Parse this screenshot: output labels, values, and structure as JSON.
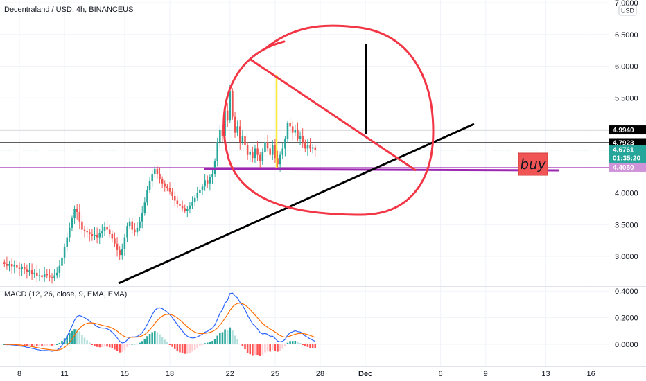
{
  "header": {
    "title": "Decentraland / USD, 4h, BINANCEUS",
    "currency": "USD"
  },
  "indicator": {
    "label": "MACD (12, 26, close, 9, EMA, EMA)"
  },
  "annotation": {
    "buy_label": "buy"
  },
  "colors": {
    "up": "#26a69a",
    "down": "#ef5350",
    "hist_up_strong": "#26a69a",
    "hist_up_weak": "#b2dfdb",
    "hist_down_strong": "#ff5252",
    "hist_down_weak": "#ffcdd2",
    "macd_line": "#2962ff",
    "signal_line": "#ff6d00",
    "red_marker": "#f23645",
    "purple": "#9c27b0",
    "last_price_bg": "#26a69a",
    "buy_box": "#f05454",
    "yellow": "#ffeb3b"
  },
  "chart_data": [
    {
      "type": "candlestick",
      "title": "Decentraland / USD, 4h, BINANCEUS",
      "x_ticks": [
        "8",
        "11",
        "15",
        "18",
        "22",
        "25",
        "28",
        "Dec",
        "6",
        "9",
        "13",
        "16"
      ],
      "y_ticks": [
        "3.0000",
        "3.5000",
        "4.0000",
        "4.5000",
        "5.0000",
        "5.5000",
        "6.0000",
        "6.5000",
        "7.0000"
      ],
      "ylim": [
        2.6,
        7.05
      ],
      "price_labels": [
        {
          "value": 4.994,
          "text": "4.9940",
          "style": "black"
        },
        {
          "value": 4.7923,
          "text": "4.7923",
          "style": "black"
        },
        {
          "value": 4.6761,
          "text": "4.6761",
          "style": "last"
        },
        {
          "value": 4.405,
          "text": "4.4050",
          "style": "purple"
        }
      ],
      "countdown": "01:35:20",
      "horizontal_levels": [
        4.994,
        4.7923
      ],
      "purple_level": 4.405,
      "trendline": {
        "from": [
          "Nov 12",
          2.65
        ],
        "to": [
          "Dec 8",
          5.1
        ]
      },
      "descending_line": {
        "from": [
          "Nov 24",
          6.05
        ],
        "to": [
          "Dec 2",
          4.4
        ]
      },
      "closes": [
        2.88,
        2.85,
        2.88,
        2.84,
        2.86,
        2.82,
        2.8,
        2.83,
        2.79,
        2.76,
        2.78,
        2.72,
        2.74,
        2.69,
        2.7,
        2.67,
        2.72,
        2.7,
        2.67,
        2.65,
        2.7,
        2.74,
        2.85,
        2.98,
        3.15,
        3.3,
        3.45,
        3.6,
        3.75,
        3.7,
        3.55,
        3.42,
        3.4,
        3.38,
        3.35,
        3.32,
        3.34,
        3.3,
        3.36,
        3.4,
        3.46,
        3.42,
        3.35,
        3.28,
        3.2,
        3.1,
        3.02,
        3.12,
        3.3,
        3.48,
        3.55,
        3.42,
        3.38,
        3.45,
        3.55,
        3.68,
        3.85,
        4.05,
        4.18,
        4.3,
        4.38,
        4.3,
        4.22,
        4.15,
        4.1,
        4.08,
        4.02,
        3.95,
        3.88,
        3.82,
        3.8,
        3.76,
        3.72,
        3.75,
        3.8,
        3.86,
        3.92,
        4.0,
        4.05,
        4.1,
        4.2,
        4.15,
        4.25,
        4.3,
        4.5,
        4.8,
        5.0,
        4.9,
        5.3,
        5.15,
        5.6,
        5.2,
        4.95,
        5.05,
        4.8,
        4.9,
        4.75,
        4.6,
        4.65,
        4.55,
        4.7,
        4.6,
        4.5,
        4.65,
        4.8,
        4.7,
        4.6,
        4.75,
        4.55,
        4.45,
        4.6,
        4.7,
        4.85,
        5.1,
        5.05,
        4.95,
        5.0,
        4.85,
        4.9,
        4.78,
        4.7,
        4.75,
        4.7,
        4.72,
        4.68
      ],
      "bars_per_day": 6,
      "start_day": 7
    },
    {
      "type": "macd",
      "title": "MACD (12, 26, close, 9, EMA, EMA)",
      "y_ticks": [
        "0.0000",
        "0.2000",
        "0.4000"
      ],
      "ylim": [
        -0.12,
        0.43
      ]
    }
  ]
}
